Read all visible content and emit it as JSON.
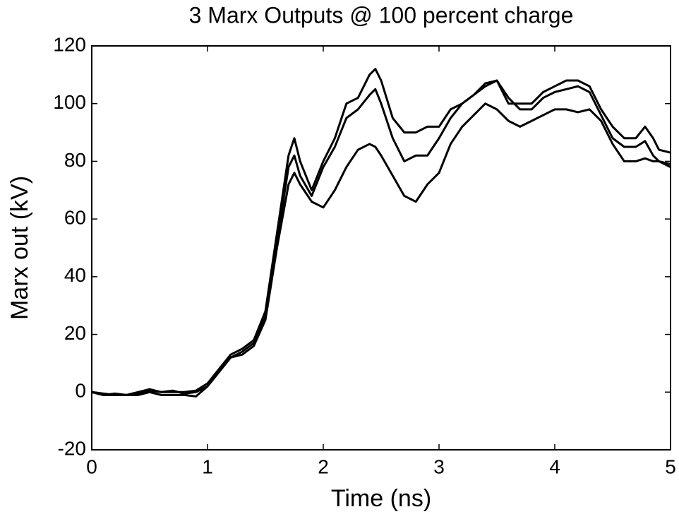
{
  "chart_data": {
    "type": "line",
    "title": "3 Marx Outputs @ 100 percent charge",
    "xlabel": "Time (ns)",
    "ylabel": "Marx out (kV)",
    "x": [
      0,
      0.1,
      0.2,
      0.3,
      0.4,
      0.5,
      0.6,
      0.7,
      0.8,
      0.9,
      1.0,
      1.1,
      1.2,
      1.3,
      1.4,
      1.5,
      1.6,
      1.7,
      1.75,
      1.8,
      1.9,
      2.0,
      2.1,
      2.2,
      2.3,
      2.4,
      2.45,
      2.5,
      2.6,
      2.7,
      2.8,
      2.9,
      3.0,
      3.1,
      3.2,
      3.3,
      3.4,
      3.5,
      3.6,
      3.7,
      3.8,
      3.9,
      4.0,
      4.1,
      4.2,
      4.3,
      4.4,
      4.5,
      4.6,
      4.7,
      4.78,
      4.85,
      4.9,
      5.0
    ],
    "series": [
      {
        "color": "#000000",
        "values": [
          0,
          -1,
          -0.5,
          -1,
          0,
          1,
          0,
          0,
          0,
          0.5,
          3,
          8,
          13,
          15,
          18,
          28,
          55,
          82,
          88,
          80,
          70,
          80,
          88,
          100,
          102,
          110,
          112,
          108,
          95,
          90,
          90,
          92,
          92,
          98,
          100,
          103,
          107,
          108,
          100,
          100,
          100,
          104,
          106,
          108,
          108,
          106,
          98,
          92,
          88,
          88,
          92,
          88,
          84,
          83
        ]
      },
      {
        "color": "#000000",
        "values": [
          0,
          -0.5,
          -1,
          -1,
          -0.5,
          0.5,
          0,
          0.5,
          -0.5,
          0,
          2,
          7,
          12,
          14,
          17,
          26,
          52,
          78,
          82,
          75,
          68,
          78,
          85,
          95,
          98,
          103,
          105,
          100,
          88,
          80,
          82,
          82,
          88,
          95,
          100,
          103,
          106,
          108,
          102,
          98,
          98,
          102,
          104,
          105,
          106,
          104,
          96,
          88,
          85,
          85,
          87,
          82,
          80,
          79
        ]
      },
      {
        "color": "#000000",
        "values": [
          0,
          -1,
          -1,
          -1,
          -1,
          0,
          -1,
          -1,
          -1,
          -1.5,
          2,
          7,
          12,
          13,
          16,
          25,
          50,
          72,
          76,
          72,
          66,
          64,
          70,
          78,
          84,
          86,
          85,
          82,
          75,
          68,
          66,
          72,
          76,
          86,
          92,
          96,
          100,
          98,
          94,
          92,
          94,
          96,
          98,
          98,
          97,
          98,
          94,
          86,
          80,
          80,
          81,
          80,
          80,
          78
        ]
      }
    ],
    "xlim": [
      0,
      5
    ],
    "xticks": [
      0,
      1,
      2,
      3,
      4,
      5
    ],
    "ylim": [
      -20,
      120
    ],
    "yticks": [
      -20,
      0,
      20,
      40,
      60,
      80,
      100,
      120
    ]
  }
}
